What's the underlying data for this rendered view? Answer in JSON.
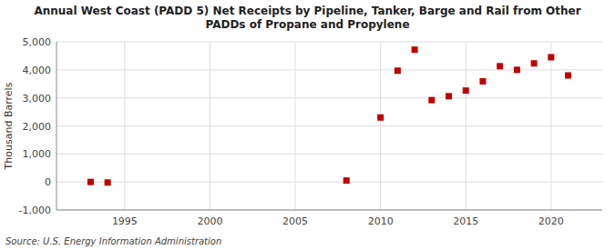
{
  "chart_data": {
    "type": "scatter",
    "title": "Annual West Coast (PADD 5) Net Receipts by Pipeline, Tanker, Barge and Rail from Other\nPADDs of Propane and Propylene",
    "ylabel": "Thousand Barrels",
    "source": "Source: U.S. Energy Information Administration",
    "x": [
      1993,
      1994,
      2008,
      2010,
      2011,
      2012,
      2013,
      2014,
      2015,
      2016,
      2017,
      2018,
      2019,
      2020,
      2021
    ],
    "values": [
      0,
      -20,
      50,
      2300,
      3970,
      4720,
      2920,
      3060,
      3260,
      3590,
      4130,
      4000,
      4230,
      4450,
      3800
    ],
    "color": "#c00000",
    "marker": "square",
    "xlim": [
      1991,
      2023
    ],
    "xticks": [
      1995,
      2000,
      2005,
      2010,
      2015,
      2020
    ],
    "ylim": [
      -1000,
      5000
    ],
    "yticks": [
      {
        "value": -1000,
        "label": "-1,000"
      },
      0,
      {
        "value": 1000,
        "label": "1,000"
      },
      {
        "value": 2000,
        "label": "2,000"
      },
      {
        "value": 3000,
        "label": "3,000"
      },
      {
        "value": 4000,
        "label": "4,000"
      },
      {
        "value": 5000,
        "label": "5,000"
      }
    ],
    "grid": true
  }
}
